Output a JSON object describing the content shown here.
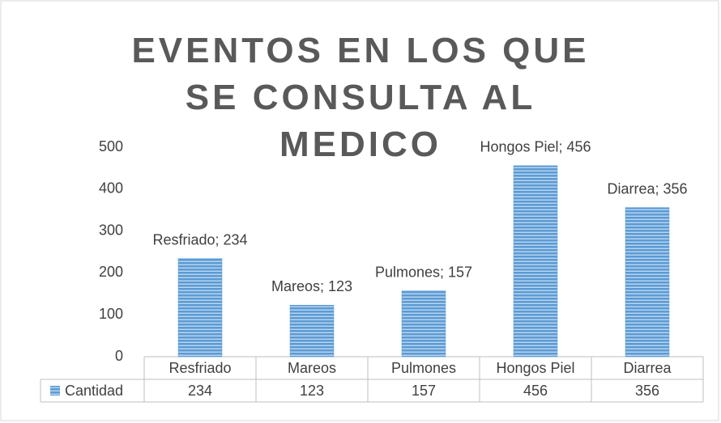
{
  "chart_data": {
    "type": "bar",
    "title": "EVENTOS EN LOS QUE SE CONSULTA AL MEDICO",
    "categories": [
      "Resfriado",
      "Mareos",
      "Pulmones",
      "Hongos Piel",
      "Diarrea"
    ],
    "series": [
      {
        "name": "Cantidad",
        "color": "#5b9bd5",
        "values": [
          234,
          123,
          157,
          456,
          356
        ],
        "value_labels": [
          "Resfriado; 234",
          "Mareos; 123",
          "Pulmones; 157",
          "Hongos Piel; 456",
          "Diarrea; 356"
        ]
      }
    ],
    "ylim": [
      0,
      500
    ],
    "yticks": [
      0,
      100,
      200,
      300,
      400,
      500
    ],
    "grid": false
  }
}
